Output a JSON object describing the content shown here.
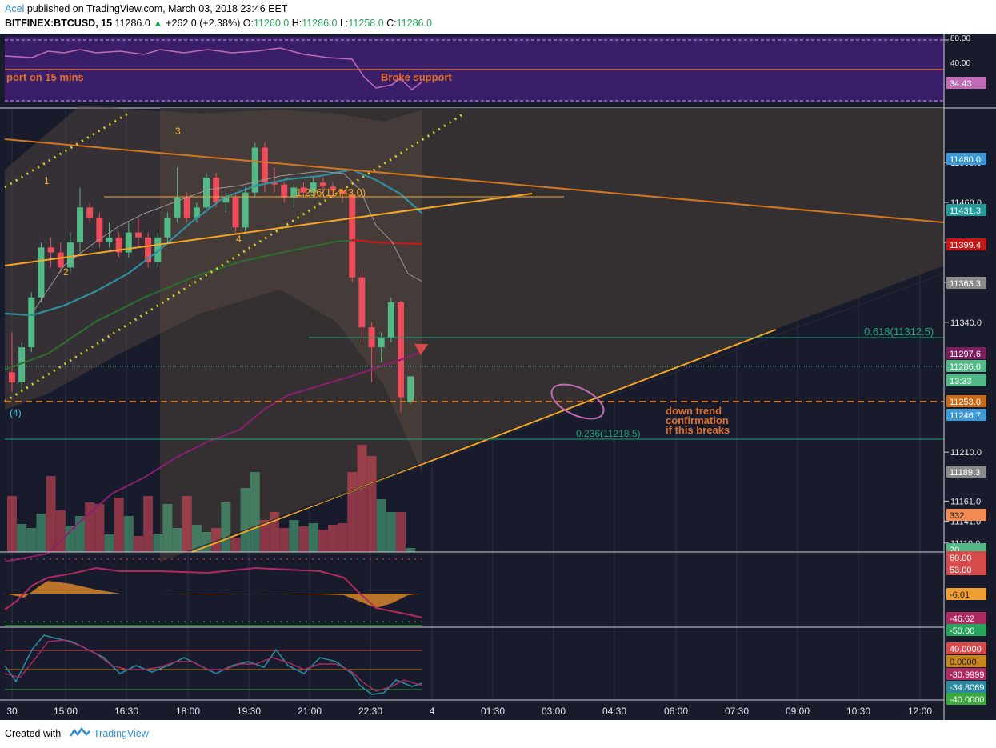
{
  "header": {
    "author": "Acel",
    "published_text": "published on TradingView.com, March 03, 2018 23:46 EET",
    "symbol": "BITFINEX:BTCUSD, 15",
    "last": "11286.0",
    "change": "+262.0 (+2.38%)",
    "o_label": "O:",
    "o_value": "11260.0",
    "h_label": "H:",
    "h_value": "11286.0",
    "l_label": "L:",
    "l_value": "11258.0",
    "c_label": "C:",
    "c_value": "11286.0"
  },
  "footer": {
    "created_with": "Created with",
    "brand": "TradingView"
  },
  "chart_data": {
    "type": "candlestick",
    "symbol": "BITFINEX:BTCUSD",
    "interval": "15",
    "x_ticks": [
      "30",
      "15:00",
      "16:30",
      "18:00",
      "19:30",
      "21:00",
      "22:30",
      "4",
      "01:30",
      "03:00",
      "04:30",
      "06:00",
      "07:30",
      "09:00",
      "10:30",
      "12:00"
    ],
    "price_ticks": [
      "11500.0",
      "11460.0",
      "11420.0",
      "11380.0",
      "11340.0",
      "11210.0",
      "11161.0",
      "11141.0",
      "11119.0"
    ],
    "ylim": [
      11110,
      11525
    ],
    "candles": [
      {
        "o": 11290,
        "h": 11330,
        "l": 11270,
        "c": 11280
      },
      {
        "o": 11280,
        "h": 11320,
        "l": 11270,
        "c": 11315
      },
      {
        "o": 11315,
        "h": 11370,
        "l": 11310,
        "c": 11365
      },
      {
        "o": 11365,
        "h": 11420,
        "l": 11360,
        "c": 11415
      },
      {
        "o": 11415,
        "h": 11425,
        "l": 11395,
        "c": 11410
      },
      {
        "o": 11410,
        "h": 11420,
        "l": 11390,
        "c": 11395
      },
      {
        "o": 11395,
        "h": 11430,
        "l": 11390,
        "c": 11420
      },
      {
        "o": 11420,
        "h": 11475,
        "l": 11410,
        "c": 11455
      },
      {
        "o": 11455,
        "h": 11460,
        "l": 11440,
        "c": 11445
      },
      {
        "o": 11445,
        "h": 11450,
        "l": 11415,
        "c": 11420
      },
      {
        "o": 11420,
        "h": 11440,
        "l": 11415,
        "c": 11425
      },
      {
        "o": 11425,
        "h": 11430,
        "l": 11405,
        "c": 11410
      },
      {
        "o": 11410,
        "h": 11440,
        "l": 11405,
        "c": 11430
      },
      {
        "o": 11430,
        "h": 11445,
        "l": 11415,
        "c": 11425
      },
      {
        "o": 11425,
        "h": 11430,
        "l": 11395,
        "c": 11400
      },
      {
        "o": 11400,
        "h": 11430,
        "l": 11395,
        "c": 11425
      },
      {
        "o": 11425,
        "h": 11450,
        "l": 11420,
        "c": 11445
      },
      {
        "o": 11445,
        "h": 11495,
        "l": 11440,
        "c": 11465
      },
      {
        "o": 11465,
        "h": 11470,
        "l": 11440,
        "c": 11445
      },
      {
        "o": 11445,
        "h": 11460,
        "l": 11440,
        "c": 11455
      },
      {
        "o": 11455,
        "h": 11490,
        "l": 11450,
        "c": 11485
      },
      {
        "o": 11485,
        "h": 11490,
        "l": 11455,
        "c": 11460
      },
      {
        "o": 11460,
        "h": 11470,
        "l": 11450,
        "c": 11465
      },
      {
        "o": 11465,
        "h": 11470,
        "l": 11430,
        "c": 11435
      },
      {
        "o": 11435,
        "h": 11475,
        "l": 11430,
        "c": 11470
      },
      {
        "o": 11470,
        "h": 11520,
        "l": 11465,
        "c": 11515
      },
      {
        "o": 11515,
        "h": 11520,
        "l": 11470,
        "c": 11480
      },
      {
        "o": 11480,
        "h": 11495,
        "l": 11470,
        "c": 11478
      },
      {
        "o": 11478,
        "h": 11480,
        "l": 11460,
        "c": 11465
      },
      {
        "o": 11465,
        "h": 11478,
        "l": 11455,
        "c": 11475
      },
      {
        "o": 11475,
        "h": 11480,
        "l": 11465,
        "c": 11470
      },
      {
        "o": 11470,
        "h": 11485,
        "l": 11465,
        "c": 11480
      },
      {
        "o": 11480,
        "h": 11485,
        "l": 11470,
        "c": 11476
      },
      {
        "o": 11476,
        "h": 11480,
        "l": 11465,
        "c": 11472
      },
      {
        "o": 11472,
        "h": 11475,
        "l": 11460,
        "c": 11468
      },
      {
        "o": 11468,
        "h": 11472,
        "l": 11380,
        "c": 11385
      },
      {
        "o": 11385,
        "h": 11390,
        "l": 11320,
        "c": 11335
      },
      {
        "o": 11335,
        "h": 11340,
        "l": 11280,
        "c": 11315
      },
      {
        "o": 11315,
        "h": 11330,
        "l": 11300,
        "c": 11325
      },
      {
        "o": 11325,
        "h": 11365,
        "l": 11320,
        "c": 11360
      },
      {
        "o": 11360,
        "h": 11362,
        "l": 11250,
        "c": 11265
      },
      {
        "o": 11260,
        "h": 11286,
        "l": 11258,
        "c": 11286
      }
    ],
    "volume_ticks": [
      "332",
      "20"
    ],
    "price_labels": [
      {
        "value": "11480.0",
        "color": "#3d9ad6"
      },
      {
        "value": "11431.3",
        "color": "#269b9b"
      },
      {
        "value": "11399.4",
        "color": "#c41818"
      },
      {
        "value": "11363.3",
        "color": "#8a8a8a"
      },
      {
        "value": "11297.6",
        "color": "#7b1f5f"
      },
      {
        "value": "11286.0",
        "color": "#53b987"
      },
      {
        "value": "13:33",
        "color": "#53b987"
      },
      {
        "value": "11253.0",
        "color": "#c86a1a"
      },
      {
        "value": "11246.7",
        "color": "#3d9ad6"
      },
      {
        "value": "11189.3",
        "color": "#8a8a8a"
      }
    ],
    "volume_label": {
      "value": "332",
      "color": "#f28a52"
    },
    "volume_last_label": {
      "value": "20",
      "color": "#53b987"
    },
    "rsi_panel": {
      "ticks": [
        "80.00",
        "40.00"
      ],
      "last_label": {
        "value": "34.43",
        "color": "#c06bb5"
      }
    },
    "osc1_panel": {
      "labels": [
        {
          "value": "60.00",
          "color": "#d64a4a"
        },
        {
          "value": "53.00",
          "color": "#d64a4a"
        },
        {
          "value": "-6.01",
          "color": "#f0a030"
        },
        {
          "value": "-46.62",
          "color": "#b02a62"
        },
        {
          "value": "-50.00",
          "color": "#26a65b"
        }
      ]
    },
    "osc2_panel": {
      "labels": [
        {
          "value": "40.0000",
          "color": "#d64a4a"
        },
        {
          "value": "0.0000",
          "color": "#c8861a"
        },
        {
          "value": "-30.9999",
          "color": "#b02a62"
        },
        {
          "value": "-34.8069",
          "color": "#2a8aa0"
        },
        {
          "value": "-40.0000",
          "color": "#3aa83a"
        }
      ]
    },
    "annotations": {
      "rsi_left": "port on 15 mins",
      "rsi_right": "Broke support",
      "wave": [
        "1",
        "2",
        "3",
        "4",
        "(4)"
      ],
      "fib_1236": "1.236(11443.0)",
      "fib_0618": "0.618(11312.5)",
      "fib_0236": "0.236(11218.5)",
      "note_lines": [
        "down trend",
        "confirmation",
        "if this breaks"
      ]
    },
    "colors": {
      "background": "#171b2b",
      "up": "#53b987",
      "down": "#eb4d5c",
      "rsi_band": "#3b1e6a",
      "trendline": "#f5a623",
      "fib": "#1fa37e"
    }
  }
}
